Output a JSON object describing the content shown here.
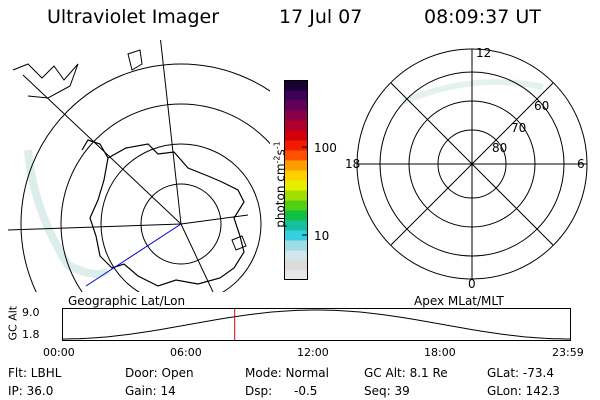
{
  "header": {
    "instrument": "Ultraviolet Imager",
    "date": "17 Jul 07",
    "time": "08:09:37 UT"
  },
  "geo_panel": {
    "label": "Geographic Lat/Lon"
  },
  "apex_panel": {
    "label": "Apex MLat/MLT",
    "mlt_labels": [
      "12",
      "18",
      "6",
      "0"
    ],
    "lat_labels": [
      "60",
      "70",
      "80"
    ]
  },
  "colorbar": {
    "label_main": "photon cm",
    "label_sup1": "-2",
    "label_mid": "s",
    "label_sup2": "-1",
    "tick_100": "100",
    "tick_10": "10",
    "colors": [
      "#e8e8e8",
      "#dcdcdc",
      "#cfe6ea",
      "#9fdde6",
      "#35d0df",
      "#14c0a0",
      "#10c040",
      "#50d010",
      "#a0e000",
      "#e6ee00",
      "#ffd000",
      "#ff9c00",
      "#ff5000",
      "#f21a00",
      "#d2000c",
      "#b0002c",
      "#8a0046",
      "#620058",
      "#3c0058",
      "#1a0030"
    ]
  },
  "alt_plot": {
    "y_title": "GC Alt",
    "y_max": "9.0",
    "y_min": "1.8",
    "x_ticks": [
      "00:00",
      "06:00",
      "12:00",
      "18:00",
      "23:59"
    ],
    "marker_hour": 8.16
  },
  "status": {
    "flt": "Flt: LBHL",
    "ip": "IP: 36.0",
    "door": "Door: Open",
    "gain": "Gain: 14",
    "mode": "Mode: Normal",
    "dsp_label": "Dsp:",
    "dsp_value": "-0.5",
    "gc_alt": "GC Alt: 8.1 Re",
    "seq": "Seq: 39",
    "glat": "GLat: -73.4",
    "glon": "GLon: 142.3"
  },
  "colors": {
    "line": "#000000",
    "marker": "#dd0000",
    "track": "#0000cc",
    "glow": "#cfe6e4"
  }
}
